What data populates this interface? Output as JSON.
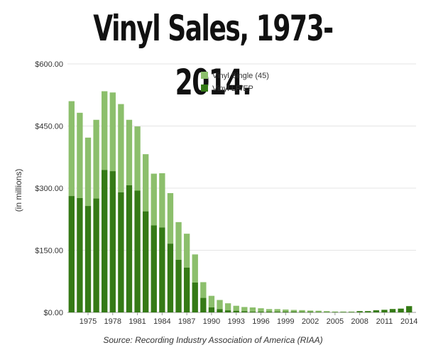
{
  "title": "Vinyl Sales, 1973-2014.",
  "source": "Source: Recording Industry Association of America (RIAA)",
  "colors": {
    "single": "#8cbf6c",
    "lp": "#357a16",
    "grid": "#e4e4e4",
    "axis": "#999999"
  },
  "chart_data": {
    "type": "bar",
    "stacked": true,
    "title": "Vinyl Sales, 1973-2014.",
    "ylabel": "(in millions)",
    "ylim": [
      0,
      600
    ],
    "yticks": [
      "$0.00",
      "$150.00",
      "$300.00",
      "$450.00",
      "$600.00"
    ],
    "ytick_values": [
      0,
      150,
      300,
      450,
      600
    ],
    "xtick_labels": [
      "1975",
      "1978",
      "1981",
      "1984",
      "1987",
      "1990",
      "1993",
      "1996",
      "1999",
      "2002",
      "2005",
      "2008",
      "2011",
      "2014"
    ],
    "legend_position": "top-center",
    "grid": true,
    "x": [
      1973,
      1974,
      1975,
      1976,
      1977,
      1978,
      1979,
      1980,
      1981,
      1982,
      1983,
      1984,
      1985,
      1986,
      1987,
      1988,
      1989,
      1990,
      1991,
      1992,
      1993,
      1994,
      1995,
      1996,
      1997,
      1998,
      1999,
      2000,
      2001,
      2002,
      2003,
      2004,
      2005,
      2006,
      2007,
      2008,
      2009,
      2010,
      2011,
      2012,
      2013,
      2014
    ],
    "series": [
      {
        "name": "Vinyl LP/EP",
        "values": [
          281,
          276,
          257,
          275,
          344,
          341,
          290,
          307,
          294,
          244,
          210,
          205,
          166,
          127,
          108,
          72,
          35,
          12,
          8,
          5,
          4,
          3,
          2,
          2,
          2,
          2,
          2,
          2,
          1.5,
          1.5,
          1,
          1,
          1,
          1,
          1,
          3,
          3,
          5,
          6,
          8,
          9,
          15
        ]
      },
      {
        "name": "Vinyl Single (45)",
        "values": [
          229,
          206,
          165,
          190,
          190,
          190,
          213,
          158,
          155,
          138,
          125,
          131,
          122,
          91,
          82,
          68,
          38,
          28,
          22,
          17,
          12,
          10,
          10,
          8,
          6,
          6,
          5,
          4,
          4,
          3,
          3,
          2,
          1,
          1,
          1,
          0.5,
          0.5,
          0.5,
          0.5,
          0.5,
          0.5,
          0.5
        ]
      }
    ]
  }
}
